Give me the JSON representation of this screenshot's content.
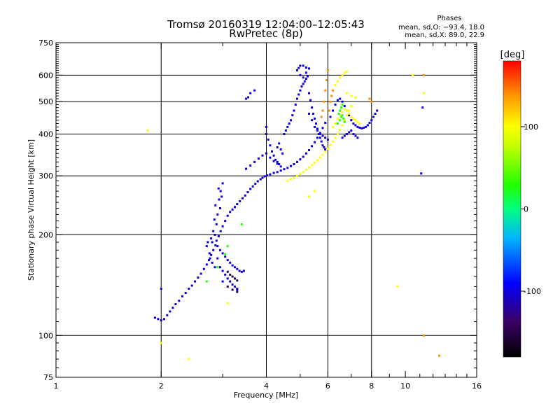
{
  "chart_data": {
    "type": "scatter",
    "title": "Tromsø 20160319 12:04:00–12:05:43",
    "subtitle": "RwPretec (8p)",
    "xlabel": "Frequency [MHz]",
    "ylabel": "Stationary phase Virtual Height [km]",
    "x_scale": "log",
    "y_scale": "log",
    "xlim": [
      1,
      16
    ],
    "ylim": [
      75,
      750
    ],
    "x_ticks": [
      1,
      2,
      4,
      6,
      8,
      10,
      16
    ],
    "y_ticks": [
      75,
      100,
      200,
      300,
      400,
      500,
      600,
      750
    ],
    "x_gridlines": [
      2,
      4,
      6,
      8
    ],
    "y_gridlines": [
      100,
      200,
      300,
      400,
      500,
      600
    ],
    "phases": {
      "title": "Phases",
      "line_o": "mean, sd,O: −93.4, 18.0",
      "line_x": "mean, sd,X:  89.0, 22.9"
    },
    "colorbar": {
      "label": "[deg]",
      "min": -180,
      "max": 180,
      "ticks": [
        100,
        0,
        -100
      ],
      "tick_labels": [
        "100",
        "0",
        "-100"
      ]
    },
    "series": [
      {
        "color_value": -100,
        "points": [
          [
            1.92,
            113
          ],
          [
            1.96,
            112
          ],
          [
            2.0,
            111
          ],
          [
            2.04,
            112
          ],
          [
            2.08,
            115
          ],
          [
            2.12,
            118
          ],
          [
            2.16,
            121
          ],
          [
            2.2,
            124
          ],
          [
            2.25,
            127
          ],
          [
            2.3,
            131
          ],
          [
            2.35,
            134
          ],
          [
            2.4,
            138
          ],
          [
            2.45,
            141
          ],
          [
            2.5,
            145
          ],
          [
            2.55,
            149
          ],
          [
            2.6,
            153
          ],
          [
            2.65,
            158
          ],
          [
            2.7,
            163
          ],
          [
            2.74,
            168
          ],
          [
            2.78,
            174
          ],
          [
            2.82,
            180
          ],
          [
            2.86,
            186
          ],
          [
            2.88,
            192
          ],
          [
            2.92,
            198
          ],
          [
            2.96,
            205
          ],
          [
            3.0,
            212
          ],
          [
            3.05,
            220
          ],
          [
            3.1,
            228
          ],
          [
            3.15,
            234
          ],
          [
            3.2,
            238
          ],
          [
            3.25,
            242
          ],
          [
            3.3,
            247
          ],
          [
            3.36,
            252
          ],
          [
            3.42,
            257
          ],
          [
            3.48,
            262
          ],
          [
            3.54,
            268
          ],
          [
            3.6,
            274
          ],
          [
            3.66,
            279
          ],
          [
            3.72,
            284
          ],
          [
            3.78,
            289
          ],
          [
            3.85,
            293
          ],
          [
            3.9,
            296
          ],
          [
            3.96,
            299
          ],
          [
            4.02,
            301
          ],
          [
            4.1,
            303
          ],
          [
            4.2,
            306
          ],
          [
            4.3,
            308
          ],
          [
            4.4,
            311
          ],
          [
            4.5,
            314
          ],
          [
            4.6,
            317
          ],
          [
            4.7,
            321
          ],
          [
            4.8,
            325
          ],
          [
            4.9,
            330
          ],
          [
            5.0,
            336
          ],
          [
            5.1,
            342
          ],
          [
            5.2,
            350
          ],
          [
            5.3,
            358
          ],
          [
            5.4,
            368
          ],
          [
            5.5,
            378
          ],
          [
            5.6,
            390
          ],
          [
            5.7,
            403
          ],
          [
            5.8,
            417
          ],
          [
            5.9,
            432
          ],
          [
            2.95,
            240
          ],
          [
            2.93,
            255
          ],
          [
            2.96,
            270
          ],
          [
            3.0,
            285
          ],
          [
            2.98,
            260
          ],
          [
            2.9,
            230
          ],
          [
            2.88,
            215
          ],
          [
            2.85,
            200
          ],
          [
            2.8,
            190
          ],
          [
            2.78,
            195
          ],
          [
            2.82,
            205
          ],
          [
            2.84,
            222
          ],
          [
            2.86,
            245
          ],
          [
            2.92,
            275
          ],
          [
            2.9,
            185
          ],
          [
            2.95,
            180
          ],
          [
            3.0,
            176
          ],
          [
            3.05,
            172
          ],
          [
            3.1,
            168
          ],
          [
            3.15,
            165
          ],
          [
            3.2,
            162
          ],
          [
            3.25,
            160
          ],
          [
            3.3,
            158
          ],
          [
            3.35,
            156
          ],
          [
            3.4,
            155
          ],
          [
            3.45,
            156
          ],
          [
            2.95,
            160
          ],
          [
            3.0,
            156
          ],
          [
            3.05,
            152
          ],
          [
            3.1,
            148
          ],
          [
            3.15,
            145
          ],
          [
            3.2,
            142
          ],
          [
            3.25,
            140
          ],
          [
            3.3,
            138
          ],
          [
            2.7,
            185
          ],
          [
            2.72,
            190
          ],
          [
            2.75,
            176
          ],
          [
            2.76,
            170
          ],
          [
            2.8,
            165
          ],
          [
            2.85,
            160
          ],
          [
            2.9,
            170
          ],
          [
            3.5,
            315
          ],
          [
            3.6,
            322
          ],
          [
            3.7,
            330
          ],
          [
            3.8,
            338
          ],
          [
            3.9,
            345
          ],
          [
            4.0,
            350
          ],
          [
            4.1,
            340
          ],
          [
            4.2,
            332
          ],
          [
            4.3,
            326
          ],
          [
            4.0,
            420
          ],
          [
            4.0,
            400
          ],
          [
            4.05,
            385
          ],
          [
            4.1,
            370
          ],
          [
            4.15,
            355
          ],
          [
            4.2,
            345
          ],
          [
            4.25,
            335
          ],
          [
            4.3,
            330
          ],
          [
            4.35,
            325
          ],
          [
            4.4,
            320
          ],
          [
            4.3,
            365
          ],
          [
            4.35,
            375
          ],
          [
            4.4,
            360
          ],
          [
            4.45,
            350
          ],
          [
            4.5,
            400
          ],
          [
            4.55,
            410
          ],
          [
            4.6,
            420
          ],
          [
            4.65,
            430
          ],
          [
            4.7,
            440
          ],
          [
            4.75,
            455
          ],
          [
            4.8,
            470
          ],
          [
            4.85,
            490
          ],
          [
            4.9,
            510
          ],
          [
            4.95,
            525
          ],
          [
            5.0,
            540
          ],
          [
            5.05,
            555
          ],
          [
            5.1,
            565
          ],
          [
            5.15,
            575
          ],
          [
            5.2,
            585
          ],
          [
            5.25,
            595
          ],
          [
            4.9,
            620
          ],
          [
            4.95,
            630
          ],
          [
            5.0,
            640
          ],
          [
            5.1,
            640
          ],
          [
            5.2,
            632
          ],
          [
            5.3,
            628
          ],
          [
            5.0,
            600
          ],
          [
            5.1,
            590
          ],
          [
            5.2,
            610
          ],
          [
            5.3,
            530
          ],
          [
            5.35,
            505
          ],
          [
            5.4,
            480
          ],
          [
            5.45,
            460
          ],
          [
            5.5,
            445
          ],
          [
            5.55,
            430
          ],
          [
            5.6,
            415
          ],
          [
            5.65,
            400
          ],
          [
            5.7,
            390
          ],
          [
            5.75,
            380
          ],
          [
            5.8,
            370
          ],
          [
            5.85,
            365
          ],
          [
            5.9,
            360
          ],
          [
            5.3,
            460
          ],
          [
            5.4,
            440
          ],
          [
            5.5,
            420
          ],
          [
            5.6,
            410
          ],
          [
            5.7,
            400
          ],
          [
            5.8,
            395
          ],
          [
            5.9,
            390
          ],
          [
            6.0,
            385
          ],
          [
            6.1,
            450
          ],
          [
            6.2,
            470
          ],
          [
            6.3,
            490
          ],
          [
            6.4,
            505
          ],
          [
            6.5,
            510
          ],
          [
            6.6,
            500
          ],
          [
            6.7,
            485
          ],
          [
            6.8,
            470
          ],
          [
            6.9,
            455
          ],
          [
            7.0,
            440
          ],
          [
            7.1,
            430
          ],
          [
            7.2,
            425
          ],
          [
            7.3,
            420
          ],
          [
            7.4,
            418
          ],
          [
            7.5,
            416
          ],
          [
            7.6,
            418
          ],
          [
            7.7,
            420
          ],
          [
            7.8,
            425
          ],
          [
            7.9,
            432
          ],
          [
            8.0,
            440
          ],
          [
            8.1,
            450
          ],
          [
            8.2,
            460
          ],
          [
            8.3,
            470
          ],
          [
            6.6,
            390
          ],
          [
            6.7,
            395
          ],
          [
            6.8,
            400
          ],
          [
            6.9,
            405
          ],
          [
            7.0,
            410
          ],
          [
            7.1,
            400
          ],
          [
            7.2,
            395
          ],
          [
            7.3,
            390
          ],
          [
            3.5,
            510
          ],
          [
            3.55,
            515
          ],
          [
            3.6,
            530
          ],
          [
            3.7,
            540
          ],
          [
            11.1,
            305
          ],
          [
            11.2,
            480
          ],
          [
            2.0,
            138
          ],
          [
            3.0,
            145
          ],
          [
            3.3,
            137
          ]
        ]
      },
      {
        "color_value": 100,
        "points": [
          [
            4.6,
            290
          ],
          [
            4.7,
            293
          ],
          [
            4.8,
            296
          ],
          [
            4.9,
            300
          ],
          [
            5.0,
            304
          ],
          [
            5.1,
            308
          ],
          [
            5.2,
            313
          ],
          [
            5.3,
            318
          ],
          [
            5.4,
            323
          ],
          [
            5.5,
            328
          ],
          [
            5.6,
            334
          ],
          [
            5.7,
            340
          ],
          [
            5.8,
            347
          ],
          [
            5.9,
            354
          ],
          [
            6.0,
            362
          ],
          [
            6.1,
            371
          ],
          [
            6.2,
            380
          ],
          [
            6.3,
            390
          ],
          [
            6.4,
            400
          ],
          [
            6.5,
            412
          ],
          [
            6.6,
            425
          ],
          [
            6.7,
            440
          ],
          [
            6.8,
            455
          ],
          [
            6.9,
            470
          ],
          [
            7.0,
            485
          ],
          [
            6.2,
            420
          ],
          [
            6.3,
            430
          ],
          [
            6.4,
            445
          ],
          [
            6.5,
            455
          ],
          [
            6.6,
            465
          ],
          [
            6.7,
            475
          ],
          [
            6.8,
            470
          ],
          [
            6.9,
            460
          ],
          [
            6.3,
            560
          ],
          [
            6.4,
            575
          ],
          [
            6.5,
            590
          ],
          [
            6.6,
            600
          ],
          [
            6.7,
            610
          ],
          [
            6.8,
            615
          ],
          [
            7.0,
            450
          ],
          [
            7.1,
            445
          ],
          [
            7.2,
            440
          ],
          [
            7.3,
            435
          ],
          [
            7.4,
            430
          ],
          [
            5.5,
            270
          ],
          [
            5.3,
            260
          ],
          [
            6.8,
            530
          ],
          [
            7.0,
            520
          ],
          [
            7.2,
            515
          ],
          [
            11.3,
            530
          ],
          [
            10.5,
            600
          ],
          [
            11.3,
            100
          ],
          [
            9.5,
            140
          ],
          [
            1.83,
            410
          ],
          [
            2.0,
            95
          ],
          [
            2.4,
            85
          ],
          [
            3.1,
            125
          ]
        ]
      },
      {
        "color_value": 30,
        "points": [
          [
            6.4,
            430
          ],
          [
            6.5,
            440
          ],
          [
            6.55,
            450
          ],
          [
            6.6,
            455
          ],
          [
            6.65,
            445
          ],
          [
            6.7,
            435
          ],
          [
            6.45,
            460
          ],
          [
            6.5,
            470
          ],
          [
            6.55,
            480
          ],
          [
            6.6,
            490
          ],
          [
            3.4,
            215
          ],
          [
            3.1,
            185
          ],
          [
            3.05,
            175
          ],
          [
            2.9,
            160
          ],
          [
            2.7,
            145
          ]
        ]
      },
      {
        "color_value": 140,
        "points": [
          [
            6.0,
            620
          ],
          [
            5.95,
            580
          ],
          [
            5.9,
            540
          ],
          [
            5.85,
            500
          ],
          [
            5.8,
            470
          ],
          [
            5.75,
            450
          ],
          [
            6.05,
            470
          ],
          [
            6.1,
            500
          ],
          [
            6.15,
            520
          ],
          [
            6.2,
            540
          ],
          [
            8.0,
            500
          ],
          [
            7.9,
            510
          ],
          [
            11.3,
            600
          ],
          [
            12.5,
            87
          ],
          [
            11.3,
            100
          ]
        ]
      },
      {
        "color_value": -150,
        "points": [
          [
            3.1,
            155
          ],
          [
            3.15,
            152
          ],
          [
            3.2,
            150
          ],
          [
            3.25,
            148
          ],
          [
            3.3,
            146
          ],
          [
            3.1,
            140
          ],
          [
            3.2,
            137
          ],
          [
            3.3,
            135
          ]
        ]
      }
    ]
  }
}
